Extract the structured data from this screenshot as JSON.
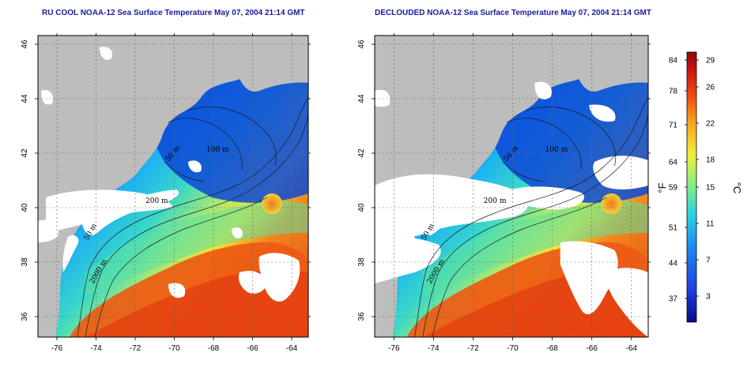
{
  "maps": [
    {
      "title": "RU COOL NOAA-12 Sea Surface Temperature May 07, 2004 21:14 GMT",
      "lon_ticks": [
        "-76",
        "-74",
        "-72",
        "-70",
        "-68",
        "-66",
        "-64"
      ],
      "lat_ticks": [
        "36",
        "38",
        "40",
        "42",
        "44",
        "46"
      ],
      "contours": [
        "50 m",
        "200 m",
        "2000 m",
        "50 m",
        "100 m"
      ]
    },
    {
      "title": "DECLOUDED NOAA-12 Sea Surface Temperature May 07, 2004 21:14 GMT",
      "lon_ticks": [
        "-76",
        "-74",
        "-72",
        "-70",
        "-68",
        "-66",
        "-64"
      ],
      "lat_ticks": [
        "36",
        "38",
        "40",
        "42",
        "44",
        "46"
      ],
      "contours": [
        "50 m",
        "200 m",
        "2000 m",
        "50 m",
        "100 m"
      ]
    }
  ],
  "colorbar": {
    "f_label": "°F",
    "c_label": "°C",
    "f_ticks": [
      "84",
      "78",
      "71",
      "64",
      "59",
      "51",
      "44",
      "37"
    ],
    "c_ticks": [
      "29",
      "26",
      "22",
      "18",
      "15",
      "11",
      "7",
      "3"
    ],
    "colors": [
      "#0a0a8c",
      "#1f3fe0",
      "#1e8cf0",
      "#2ad4e0",
      "#8ef07a",
      "#f4ec3a",
      "#f7a21e",
      "#ee4a10",
      "#c81010",
      "#8c0a0a"
    ]
  }
}
